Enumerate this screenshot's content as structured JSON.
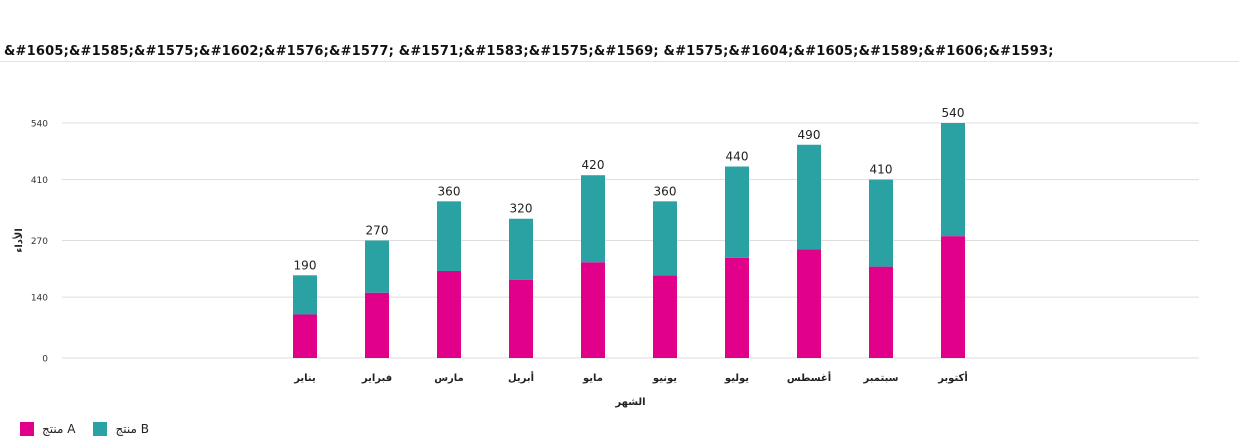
{
  "title": "&#1605;&#1585;&#1575;&#1602;&#1576;&#1577; &#1571;&#1583;&#1575;&#1569; &#1575;&#1604;&#1605;&#1589;&#1606;&#1593;",
  "colors": {
    "series_a": "#e0008a",
    "series_b": "#2aa1a3",
    "grid": "#dddddd"
  },
  "chart_data": {
    "type": "bar",
    "stacked": true,
    "xlabel": "الشهر",
    "ylabel": "الأداء",
    "ylim": [
      0,
      540
    ],
    "yticks": [
      0,
      140,
      270,
      410,
      540
    ],
    "categories": [
      "يناير",
      "فبراير",
      "مارس",
      "أبريل",
      "مايو",
      "يونيو",
      "يوليو",
      "أغسطس",
      "سبتمبر",
      "أكتوبر"
    ],
    "series": [
      {
        "name": "منتج A",
        "values": [
          100,
          150,
          200,
          180,
          220,
          190,
          230,
          250,
          210,
          280
        ]
      },
      {
        "name": "منتج B",
        "values": [
          90,
          120,
          160,
          140,
          200,
          170,
          210,
          240,
          200,
          260
        ]
      }
    ],
    "totals": [
      190,
      270,
      360,
      320,
      420,
      360,
      440,
      490,
      410,
      540
    ],
    "grid": true,
    "legend": "bottom-left"
  }
}
